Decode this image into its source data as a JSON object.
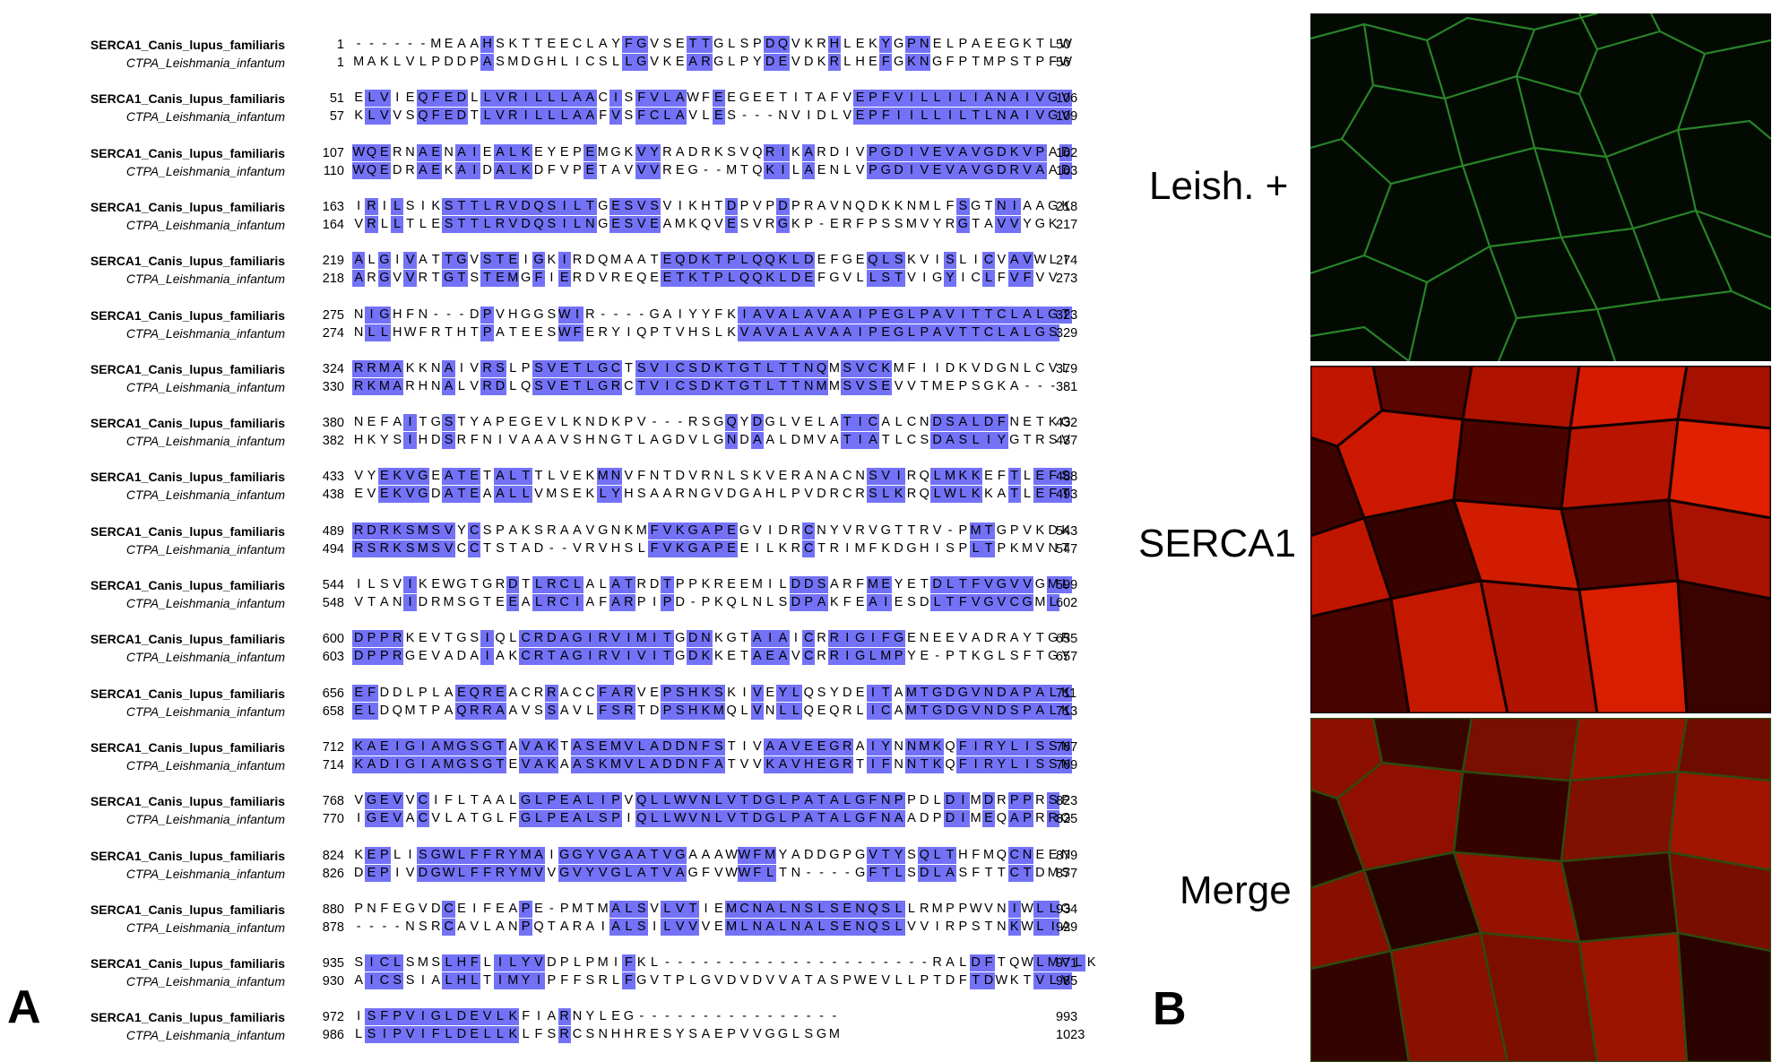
{
  "panel_a_label": "A",
  "panel_b_label": "B",
  "alignment": {
    "seq1_name": "SERCA1_Canis_lupus_familiaris",
    "seq2_name": "CTPA_Leishmania_infantum",
    "blocks": [
      {
        "s1": [
          "1",
          "------MEAAHSKTTEECLAYFGVSETTGLSPDQVKRHLEKYGPNELPAEEGKTLW",
          "50",
          "0000000000100000000001100011000011000100010110000000000001"
        ],
        "s2": [
          "1",
          "MAKLVLPDDPASMDGHLICSLLGVKEARGLPYDEVDKRLHEFGKNGFPTMPSTPFW",
          "56"
        ]
      },
      {
        "s1": [
          "51",
          "ELVIEQFEDLLVRILLLAACISFVLAWFEEGEETITAFVEPFVILLILIANAIVGV",
          "106",
          "0110011110111111111010111100100000000001111111111111111111"
        ],
        "s2": [
          "57",
          "KLVVSQFEDTLVRILLLAAFVSFCLAVLES---NVIDLVEPFIILLILTLNAIVGV",
          "109"
        ]
      },
      {
        "s1": [
          "107",
          "WQERNAENAIEALKEYEPEMGKVYRADRKSVQRIKARDIVPGDIVEVAVGDKVPAD",
          "162",
          "1110011011011100001000110000000011010000111111111111110111"
        ],
        "s2": [
          "110",
          "WQEDRAEKAIDALKDFVPETAVVVREG--MTQKILAENLVPGDIVEVAVGDRVAAD",
          "163"
        ]
      },
      {
        "s1": [
          "163",
          "IRILSIKSTTLRVDQSILTGESVSVIKHTDPVPDPRAVNQDKKNMLFSGTNIAAGK",
          "218",
          "0101000111111111111011110000010001000000000000010011000011"
        ],
        "s2": [
          "164",
          "VRLLTLESTTLRVDQSILNGESVEAMKQVESVRGKP-ERFPSSMVYRGTAVVYGK",
          "217"
        ]
      },
      {
        "s1": [
          "219",
          "ALGIVATTGVSTEIGKIRDQMAATEQDKTPLQQKLDEFGEQLSKVISLICVAVWLI",
          "274",
          "1010100110111010100000001111111111110000111000100101100000"
        ],
        "s2": [
          "218",
          "ARGVVRTGTSTEMGFIERDVREQEETKTPLQQKLDEFGVLLSTVIGYICLFVFVV",
          "273"
        ]
      },
      {
        "s1": [
          "275",
          "NIGHFN---DPVHGGSWIR----GAIYYFKIAVALAVAAIPEGLPAVITTCLALGT",
          "323",
          "0110000000100000110000000000001111111111111111111111111110"
        ],
        "s2": [
          "274",
          "NLLHWFRTHTPATEESWFERYIQPTVHSLKVAVALAVAAIPEGLPAVTTCLALGS",
          "329"
        ]
      },
      {
        "s1": [
          "324",
          "RRMAKKNAIVRSLPSVETLGCTSVICSDKTGTLTTNQMSVCKMFIIDKVDGNLCVL",
          "379",
          "1111000100110011111110111111111111111011110000000000000000"
        ],
        "s2": [
          "330",
          "RKMARHNALVRDLQSVETLGRCTVICSDKTGTLTTNMMSVSEVVTMEPSGKA----",
          "381"
        ]
      },
      {
        "s1": [
          "380",
          "NEFAITGSTYAPEGEVLKNDKPV---RSGQYDGLVELATICALCNDSALDFNETKG",
          "432",
          "0000100100000000000000000000010100000011100001111110000000"
        ],
        "s2": [
          "382",
          "HKYSIHDSRFNIVAAAVSHNGTLAGDVLGNDAALDMVATIATLCSDASLIYGTRSV",
          "437"
        ]
      },
      {
        "s1": [
          "433",
          "VYEKVGEATETALTTLVEKMNVFNTDVRNLSKVERANACNSVIRQLMKKEFTLEFS",
          "488",
          "0011110111011100000110000000000000000000111001111001011110"
        ],
        "s2": [
          "438",
          "EVEKVGDATEAALLVMSEKLYHSAARNGVDGAHLPVDRCRSLKRQLWLKKATLEFT",
          "493"
        ]
      },
      {
        "s1": [
          "489",
          "RDRKSMSVYCSPAKSRAAVGNKMFVKGAPEGVIDRCNYVRVGTTRV-PMTGPVKDK",
          "543",
          "1111111101000000000000011111110000010000000000001100000000"
        ],
        "s2": [
          "494",
          "RSRKSMSVCCTSTAD--VRVHSLFVKGAPEEILKRCTRIMFKDGHISPLTPKMVNT",
          "547"
        ]
      },
      {
        "s1": [
          "544",
          "ILSVIKEWGTGRDTLRCLALATRDTPPKREEMILDDSARFMEYETDLTFVGVVGML",
          "599",
          "0000100000001011110011001000000000111000110001111111101110"
        ],
        "s2": [
          "548",
          "VTANIDRMSGTEEALRCIAFARPIPD-PKQLNLSDPAKFEAIESDLTFVGVCGML",
          "602"
        ]
      },
      {
        "s1": [
          "600",
          "DPPRKEVTGSIQLCRDAGIRVIMITGDNKGTAIAICRRIGIFGENEEVADRAYTGR",
          "655",
          "1111000000100111111111111011000111010111111000000000000001"
        ],
        "s2": [
          "603",
          "DPPRGEVADAIAKCRTAGIRVIVITGDKKETAEAVCRRIGLMPYE-PTKGLSFTGY",
          "657"
        ]
      },
      {
        "s1": [
          "656",
          "EFDDLPLAEQREACRRACCFARVEPSHKSKIVEYLQSYDEITAMTGDGVNDAPALK",
          "711",
          "1100000011110001000111001111100101100000110111111111111111"
        ],
        "s2": [
          "658",
          "ELDQMTPAQRRAAVSSAVLFSRTDPSHKMQLVNLLQEQRLICAMTGDGVNDSPALK",
          "713"
        ]
      },
      {
        "s1": [
          "712",
          "KAEIGIAMGSGTAVAKTASEMVLADDNFSTIVAAVEEGRAIYNNMKQFIRYLISSN",
          "767",
          "1111111111110111011111111111100011111110110111011111111111"
        ],
        "s2": [
          "714",
          "KADIGIAMGSGTEVAKAASKMVLADDNFATVVKAVHEGRTIFNNTKQFIRYLISSN",
          "769"
        ]
      },
      {
        "s1": [
          "768",
          "VGEVVCIFLTAALGLPEALIPVQLLWVNLVTDGLPATALGFNPPDLDIMDRPPRSP",
          "823",
          "0111010000000111111110111111111111111111111000110101101010"
        ],
        "s2": [
          "770",
          "IGEVACVLATGLFGLPEALSPIQLLWVNLVTDGLPATALGFNAADPDIMEQAPRRG",
          "825"
        ]
      },
      {
        "s1": [
          "824",
          "KEPLISGWLFFRYMAIGGYVGAATVGAAAWWFMYADDGPGVTYSQLTHFMQCNEEN",
          "879",
          "0110011111111110111111111100001110000000111011100001100000"
        ],
        "s2": [
          "826",
          "DEPIVDGWLFFRYMVVGVYVGLATVAGFVWWFLTN----GFTLSDLASFTTCTDMS",
          "877"
        ]
      },
      {
        "s1": [
          "880",
          "PNFEGVDCEIFEAPE-PMTMALSVLVTIEMCNALNSLSENQSLLRMPPWVNIWLLG",
          "934",
          "0000000100000100000011101110011111111111111000000001011000"
        ],
        "s2": [
          "878",
          "----NSRCAVLANPQTARAIALSILVVVEMLNALNALSENQSLVVIRPSTNKWLIA",
          "929"
        ]
      },
      {
        "s1": [
          "935",
          "SICLSMSLHFLILYVDPLPMIFKL---------------------RALDFTQWLMVLK",
          "971",
          "0111000111011110000001000000000000000000000000001100011110"
        ],
        "s2": [
          "930",
          "AICSSIALHLTIMYIPFFSRLFGVTPLGVDVDVVATASPWEVLLPTDFTDWKTVLV",
          "985"
        ]
      },
      {
        "s1": [
          "972",
          "ISFPVIGLDEVLKFIARNYLEG----------------",
          "993",
          "0111111111111000100000000000000000000000000000000000000000"
        ],
        "s2": [
          "986",
          "LSIPVIFLDELLKLFSRCSNHHRESYSAEPVVGGLSGM",
          "1023"
        ]
      }
    ]
  },
  "panel_b": {
    "labels": [
      "Leish. +",
      "SERCA1",
      "Merge"
    ],
    "colors": {
      "green_channel": "#1c8a1c",
      "red_channel": "#c11000",
      "highlight": "#7372f7"
    }
  }
}
